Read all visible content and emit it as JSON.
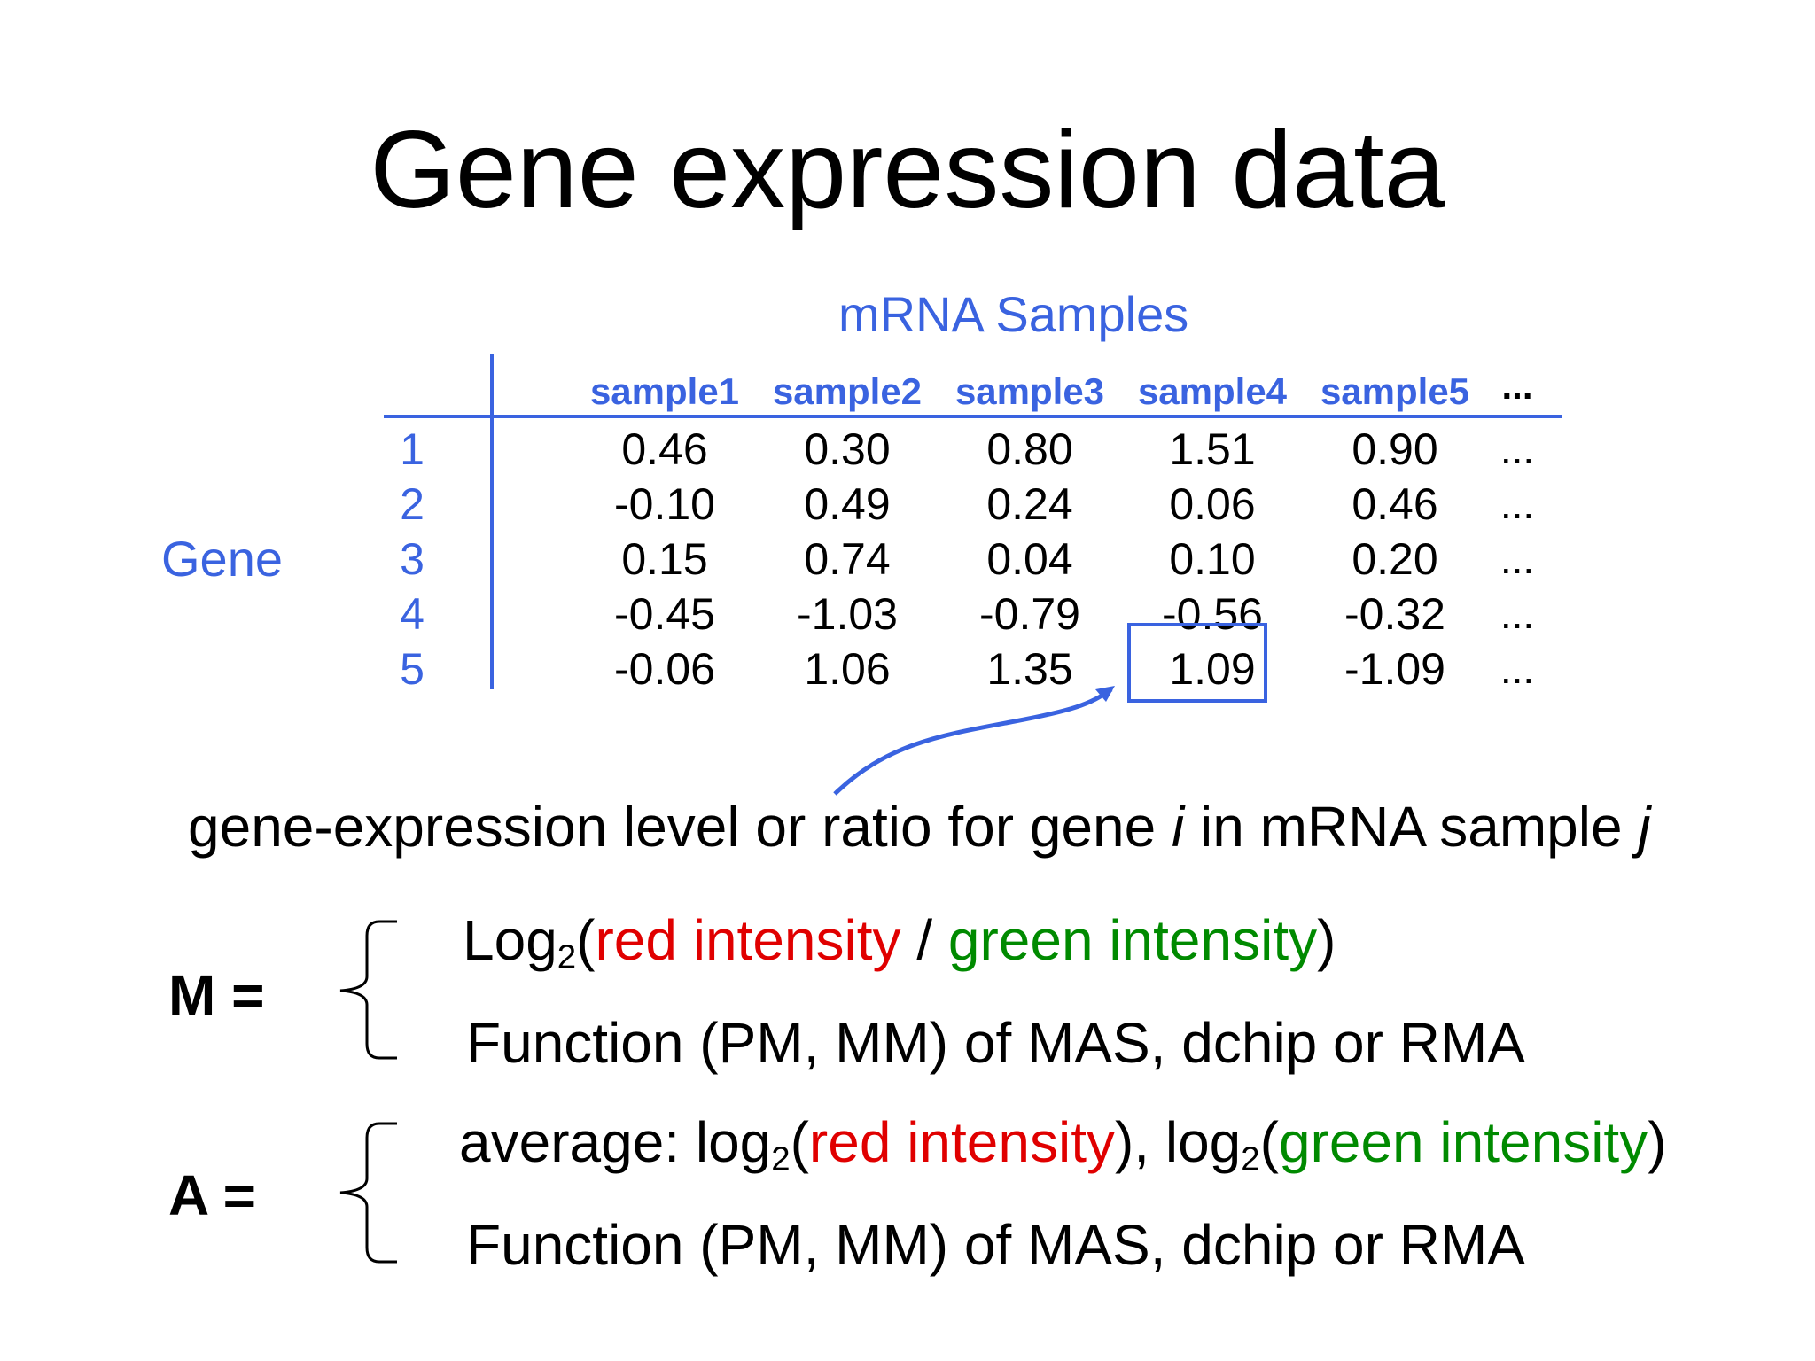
{
  "title": "Gene expression data",
  "table": {
    "samples_label": "mRNA Samples",
    "genes_label": "Gene",
    "columns": [
      "sample1",
      "sample2",
      "sample3",
      "sample4",
      "sample5"
    ],
    "more_marker": "...",
    "rows": [
      {
        "label": "1",
        "values": [
          "0.46",
          "0.30",
          "0.80",
          "1.51",
          "0.90"
        ],
        "more": "..."
      },
      {
        "label": "2",
        "values": [
          "-0.10",
          "0.49",
          "0.24",
          "0.06",
          "0.46"
        ],
        "more": "..."
      },
      {
        "label": "3",
        "values": [
          "0.15",
          "0.74",
          "0.04",
          "0.10",
          "0.20"
        ],
        "more": "..."
      },
      {
        "label": "4",
        "values": [
          "-0.45",
          "-1.03",
          "-0.79",
          "-0.56",
          "-0.32"
        ],
        "more": "..."
      },
      {
        "label": "5",
        "values": [
          "-0.06",
          "1.06",
          "1.35",
          "1.09",
          "-1.09"
        ],
        "more": "..."
      }
    ],
    "highlighted_cell": {
      "row": 5,
      "column": "sample4"
    }
  },
  "definition": {
    "prefix": "gene-expression level or ratio for gene ",
    "var_i": "i",
    "middle": " in mRNA sample ",
    "var_j": "j"
  },
  "m_equation": {
    "label": "M =",
    "line1": {
      "fn": "Log",
      "sub": "2",
      "open": "(",
      "red": "red intensity",
      "sep": " / ",
      "green": "green intensity",
      "close": ")"
    },
    "line2": "Function (PM, MM) of MAS, dchip or RMA"
  },
  "a_equation": {
    "label": "A =",
    "line1": {
      "prefix": "average: log",
      "sub1": "2",
      "open1": "(",
      "red": "red intensity",
      "mid": "), log",
      "sub2": "2",
      "open2": "(",
      "green": "green intensity",
      "close": ")"
    },
    "line2": "Function (PM, MM) of MAS, dchip or RMA"
  },
  "colors": {
    "table_blue": "#3a63e0",
    "red": "#e00000",
    "green": "#008a00",
    "text": "#000000"
  }
}
